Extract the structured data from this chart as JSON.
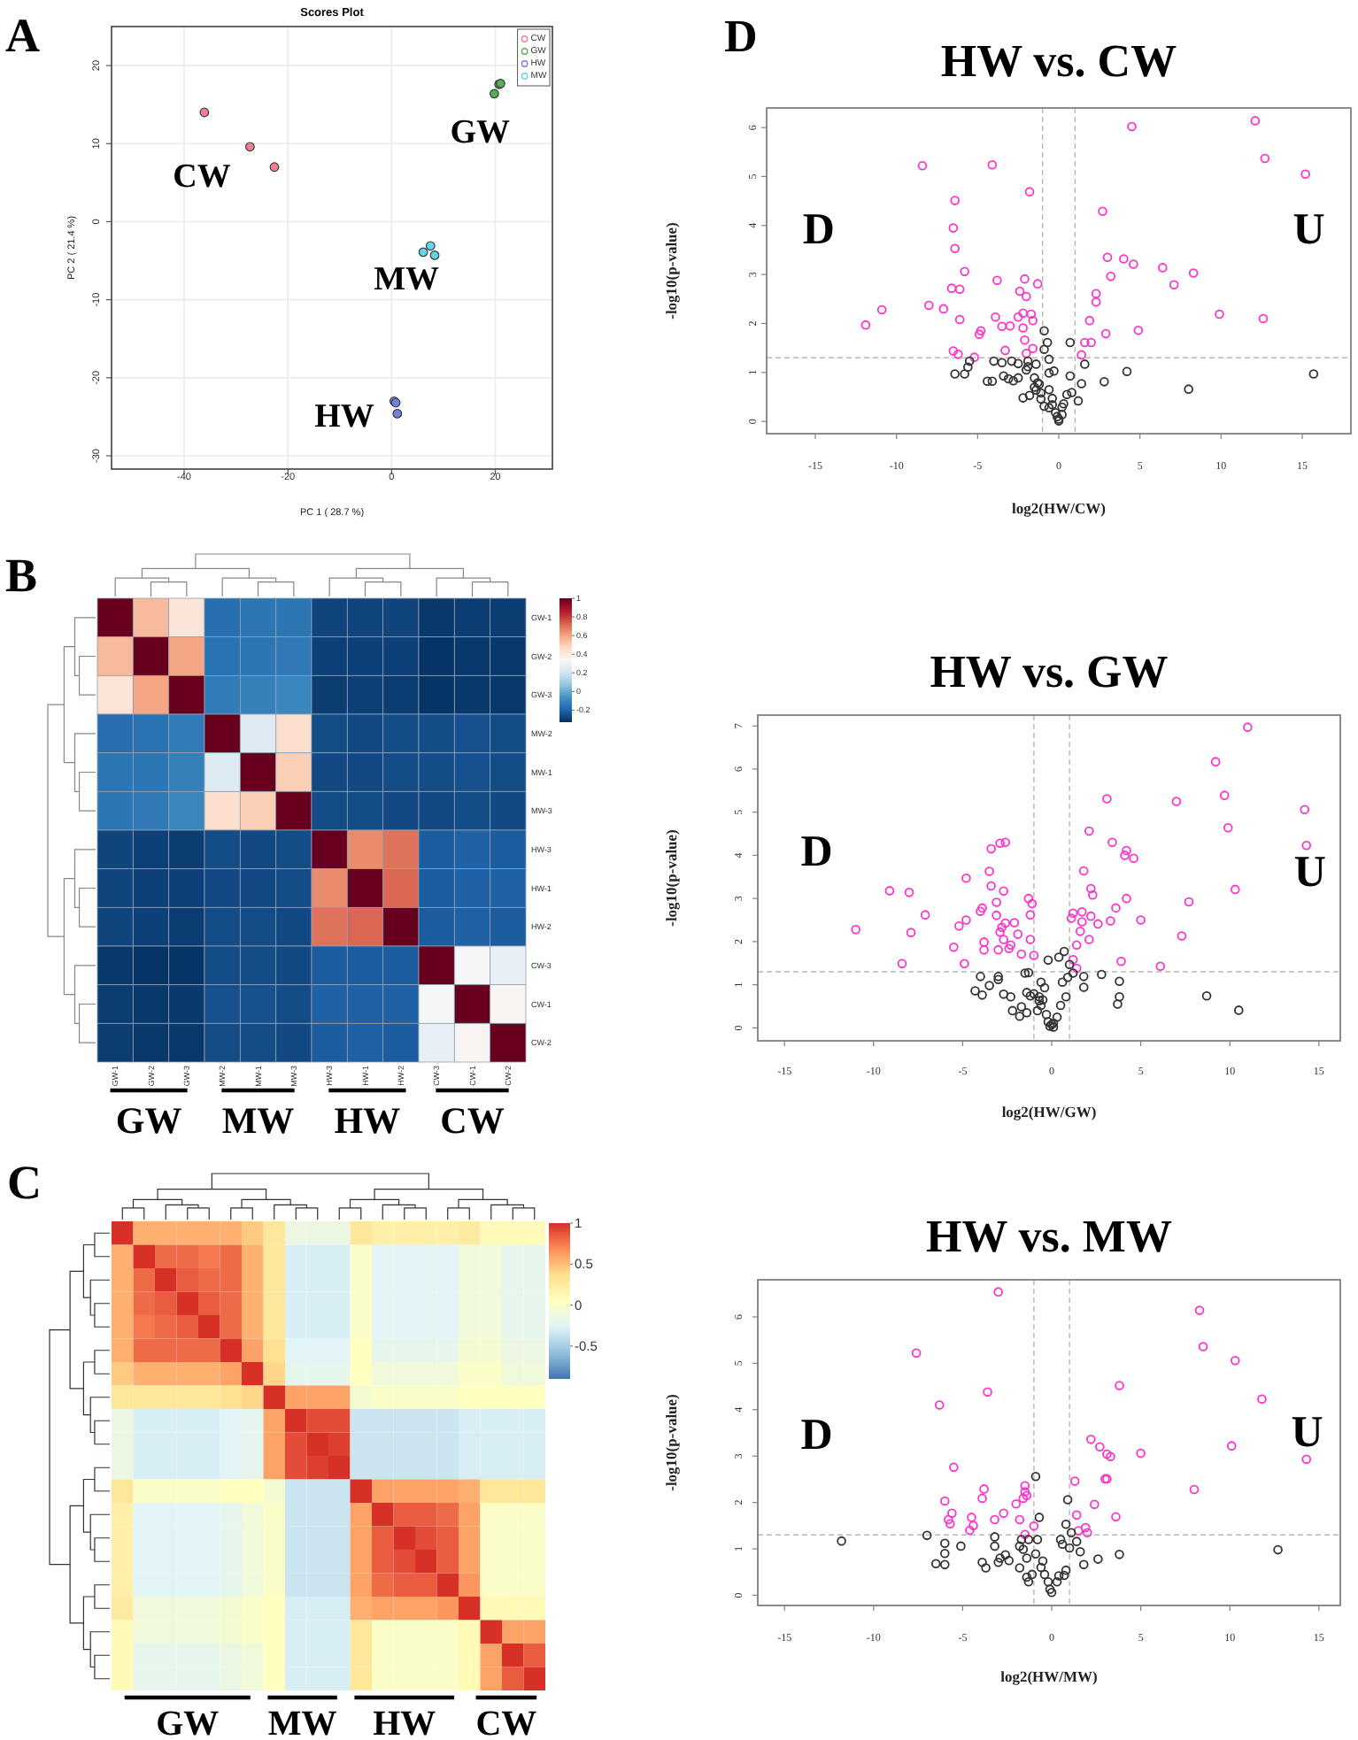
{
  "chart_data": [
    {
      "type": "scatter",
      "title": "Scores Plot",
      "xlabel": "PC 1 ( 28.7 %)",
      "ylabel": "PC 2 ( 21.4 %)",
      "annotations": [
        "A",
        "CW",
        "GW",
        "MW",
        "HW"
      ],
      "xlim": [
        -54,
        31
      ],
      "ylim": [
        -31.7,
        25
      ],
      "xticks": [
        -40,
        -20,
        0,
        20
      ],
      "yticks": [
        -30,
        -20,
        -10,
        0,
        10,
        20
      ],
      "grid": true,
      "legend": "top right",
      "marker": "circle",
      "series": [
        {
          "name": "CW",
          "color": "#f07f93",
          "x": [
            -36.1,
            -27.3,
            -22.6
          ],
          "values": [
            14.0,
            9.6,
            7.0
          ]
        },
        {
          "name": "GW",
          "color": "#55b04f",
          "x": [
            19.8,
            20.7,
            21.0
          ],
          "values": [
            16.4,
            17.6,
            17.7
          ]
        },
        {
          "name": "HW",
          "color": "#7080de",
          "x": [
            0.5,
            0.8,
            1.1
          ],
          "values": [
            -23.0,
            -23.2,
            -24.6
          ]
        },
        {
          "name": "MW",
          "color": "#62d5e8",
          "x": [
            6.1,
            7.5,
            8.3
          ],
          "values": [
            -3.9,
            -3.1,
            -4.3
          ]
        }
      ]
    },
    {
      "type": "heatmap",
      "annotations": [
        "B",
        "GW",
        "MW",
        "HW",
        "CW"
      ],
      "categories": [
        "GW-1",
        "GW-2",
        "GW-3",
        "MW-2",
        "MW-1",
        "MW-3",
        "HW-3",
        "HW-1",
        "HW-2",
        "CW-3",
        "CW-1",
        "CW-2"
      ],
      "y_categories": [
        "GW-1",
        "GW-2",
        "GW-3",
        "MW-2",
        "MW-1",
        "MW-3",
        "HW-3",
        "HW-1",
        "HW-2",
        "CW-3",
        "CW-1",
        "CW-2"
      ],
      "clim": [
        -0.33,
        1
      ],
      "cticks": [
        -0.2,
        0,
        0.2,
        0.4,
        0.6,
        0.8,
        1
      ],
      "colors": [
        "#053061",
        "#2166ac",
        "#4393c3",
        "#92c5de",
        "#d1e5f0",
        "#f7f7f7",
        "#fddbc7",
        "#f4a582",
        "#d6604d",
        "#b2182b",
        "#67001f"
      ],
      "cells": [
        [
          1,
          0.55,
          0.42,
          -0.17,
          -0.15,
          -0.15,
          -0.28,
          -0.28,
          -0.28,
          -0.31,
          -0.3,
          -0.3
        ],
        [
          0.55,
          1,
          0.6,
          -0.16,
          -0.15,
          -0.14,
          -0.29,
          -0.29,
          -0.29,
          -0.32,
          -0.31,
          -0.31
        ],
        [
          0.42,
          0.6,
          1,
          -0.13,
          -0.12,
          -0.1,
          -0.3,
          -0.29,
          -0.3,
          -0.32,
          -0.31,
          -0.31
        ],
        [
          -0.17,
          -0.16,
          -0.13,
          1,
          0.25,
          0.45,
          -0.26,
          -0.27,
          -0.26,
          -0.26,
          -0.25,
          -0.26
        ],
        [
          -0.15,
          -0.15,
          -0.12,
          0.25,
          1,
          0.5,
          -0.27,
          -0.27,
          -0.26,
          -0.26,
          -0.25,
          -0.26
        ],
        [
          -0.15,
          -0.14,
          -0.1,
          0.45,
          0.5,
          1,
          -0.26,
          -0.26,
          -0.27,
          -0.27,
          -0.26,
          -0.27
        ],
        [
          -0.28,
          -0.29,
          -0.3,
          -0.26,
          -0.27,
          -0.26,
          1,
          0.65,
          0.7,
          -0.22,
          -0.21,
          -0.22
        ],
        [
          -0.28,
          -0.29,
          -0.29,
          -0.27,
          -0.27,
          -0.26,
          0.65,
          1,
          0.72,
          -0.22,
          -0.21,
          -0.21
        ],
        [
          -0.28,
          -0.29,
          -0.3,
          -0.26,
          -0.26,
          -0.27,
          0.7,
          0.72,
          1,
          -0.22,
          -0.21,
          -0.22
        ],
        [
          -0.31,
          -0.32,
          -0.32,
          -0.26,
          -0.26,
          -0.27,
          -0.22,
          -0.22,
          -0.22,
          1,
          0.33,
          0.28
        ],
        [
          -0.3,
          -0.31,
          -0.31,
          -0.25,
          -0.25,
          -0.26,
          -0.21,
          -0.21,
          -0.21,
          0.33,
          1,
          0.35
        ],
        [
          -0.3,
          -0.31,
          -0.31,
          -0.26,
          -0.26,
          -0.27,
          -0.22,
          -0.21,
          -0.22,
          0.28,
          0.35,
          1
        ]
      ]
    },
    {
      "type": "heatmap",
      "annotations": [
        "C",
        "GW",
        "MW",
        "HW",
        "CW"
      ],
      "categories": [
        null,
        null,
        null,
        null,
        null,
        null,
        null,
        null,
        null,
        null,
        null,
        null,
        null,
        null,
        null,
        null,
        null,
        null,
        null,
        null
      ],
      "y_categories": [
        null,
        null,
        null,
        null,
        null,
        null,
        null,
        null,
        null,
        null,
        null,
        null,
        null,
        null,
        null,
        null,
        null,
        null,
        null,
        null
      ],
      "clim": [
        -0.9,
        1
      ],
      "cticks": [
        -0.5,
        0,
        0.5,
        1
      ],
      "colors": [
        "#4575b4",
        "#91bfdb",
        "#e0f3f8",
        "#ffffbf",
        "#fee090",
        "#fc8d59",
        "#d73027"
      ],
      "cells": [
        [
          1,
          0.55,
          0.55,
          0.55,
          0.55,
          0.55,
          0.45,
          0.3,
          -0.15,
          -0.15,
          -0.15,
          0.3,
          0.2,
          0.2,
          0.2,
          0.2,
          0.25,
          0.1,
          0.1,
          0.1
        ],
        [
          0.55,
          1,
          0.8,
          0.8,
          0.75,
          0.8,
          0.55,
          0.3,
          -0.3,
          -0.3,
          -0.3,
          0,
          -0.25,
          -0.25,
          -0.25,
          -0.25,
          -0.1,
          -0.1,
          -0.2,
          -0.2
        ],
        [
          0.55,
          0.8,
          1,
          0.85,
          0.8,
          0.8,
          0.55,
          0.3,
          -0.3,
          -0.3,
          -0.3,
          0,
          -0.25,
          -0.25,
          -0.25,
          -0.25,
          -0.1,
          -0.1,
          -0.2,
          -0.2
        ],
        [
          0.55,
          0.8,
          0.85,
          1,
          0.85,
          0.8,
          0.55,
          0.3,
          -0.3,
          -0.3,
          -0.3,
          0,
          -0.25,
          -0.25,
          -0.25,
          -0.25,
          -0.1,
          -0.1,
          -0.2,
          -0.2
        ],
        [
          0.55,
          0.75,
          0.8,
          0.85,
          1,
          0.8,
          0.55,
          0.3,
          -0.3,
          -0.3,
          -0.3,
          0,
          -0.25,
          -0.25,
          -0.25,
          -0.25,
          -0.1,
          -0.1,
          -0.2,
          -0.2
        ],
        [
          0.55,
          0.8,
          0.8,
          0.8,
          0.8,
          1,
          0.6,
          0.35,
          -0.25,
          -0.25,
          -0.25,
          0.05,
          -0.2,
          -0.2,
          -0.2,
          -0.2,
          -0.05,
          -0.05,
          -0.15,
          -0.15
        ],
        [
          0.45,
          0.55,
          0.55,
          0.55,
          0.55,
          0.6,
          1,
          0.4,
          -0.2,
          -0.2,
          -0.2,
          0.05,
          -0.1,
          -0.1,
          -0.1,
          -0.1,
          0,
          0,
          -0.1,
          -0.1
        ],
        [
          0.3,
          0.3,
          0.3,
          0.3,
          0.3,
          0.35,
          0.4,
          1,
          0.6,
          0.6,
          0.6,
          -0.05,
          0,
          0,
          0,
          0,
          0.05,
          0.05,
          0.05,
          0.05
        ],
        [
          -0.15,
          -0.3,
          -0.3,
          -0.3,
          -0.3,
          -0.25,
          -0.2,
          0.6,
          1,
          0.9,
          0.9,
          -0.35,
          -0.35,
          -0.35,
          -0.35,
          -0.35,
          -0.3,
          -0.3,
          -0.3,
          -0.3
        ],
        [
          -0.15,
          -0.3,
          -0.3,
          -0.3,
          -0.3,
          -0.25,
          -0.2,
          0.6,
          0.9,
          1,
          0.95,
          -0.35,
          -0.35,
          -0.35,
          -0.35,
          -0.35,
          -0.3,
          -0.3,
          -0.3,
          -0.3
        ],
        [
          -0.15,
          -0.3,
          -0.3,
          -0.3,
          -0.3,
          -0.25,
          -0.2,
          0.6,
          0.9,
          0.95,
          1,
          -0.35,
          -0.35,
          -0.35,
          -0.35,
          -0.35,
          -0.3,
          -0.3,
          -0.3,
          -0.3
        ],
        [
          0.3,
          0,
          0,
          0,
          0,
          0.05,
          0.05,
          -0.05,
          -0.35,
          -0.35,
          -0.35,
          1,
          0.6,
          0.6,
          0.6,
          0.6,
          0.55,
          0.3,
          0.3,
          0.3
        ],
        [
          0.2,
          -0.25,
          -0.25,
          -0.25,
          -0.25,
          -0.2,
          -0.1,
          0,
          -0.35,
          -0.35,
          -0.35,
          0.6,
          1,
          0.85,
          0.85,
          0.8,
          0.6,
          0,
          0,
          0
        ],
        [
          0.2,
          -0.25,
          -0.25,
          -0.25,
          -0.25,
          -0.2,
          -0.1,
          0,
          -0.35,
          -0.35,
          -0.35,
          0.6,
          0.85,
          1,
          0.9,
          0.85,
          0.6,
          0,
          0,
          0
        ],
        [
          0.2,
          -0.25,
          -0.25,
          -0.25,
          -0.25,
          -0.2,
          -0.1,
          0,
          -0.35,
          -0.35,
          -0.35,
          0.6,
          0.85,
          0.9,
          1,
          0.85,
          0.6,
          0,
          0,
          0
        ],
        [
          0.2,
          -0.25,
          -0.25,
          -0.25,
          -0.25,
          -0.2,
          -0.1,
          0,
          -0.35,
          -0.35,
          -0.35,
          0.6,
          0.8,
          0.85,
          0.85,
          1,
          0.65,
          0,
          0,
          0
        ],
        [
          0.25,
          -0.1,
          -0.1,
          -0.1,
          -0.1,
          -0.05,
          0,
          0.05,
          -0.3,
          -0.3,
          -0.3,
          0.55,
          0.6,
          0.6,
          0.6,
          0.65,
          1,
          0.1,
          0.1,
          0.1
        ],
        [
          0.1,
          -0.1,
          -0.1,
          -0.1,
          -0.1,
          -0.05,
          0,
          0.05,
          -0.3,
          -0.3,
          -0.3,
          0.3,
          0,
          0,
          0,
          0,
          0.1,
          1,
          0.6,
          0.6
        ],
        [
          0.1,
          -0.2,
          -0.2,
          -0.2,
          -0.2,
          -0.15,
          -0.1,
          0.05,
          -0.3,
          -0.3,
          -0.3,
          0.3,
          0,
          0,
          0,
          0,
          0.1,
          0.6,
          1,
          0.85
        ],
        [
          0.1,
          -0.2,
          -0.2,
          -0.2,
          -0.2,
          -0.15,
          -0.1,
          0.05,
          -0.3,
          -0.3,
          -0.3,
          0.3,
          0,
          0,
          0,
          0,
          0.1,
          0.6,
          0.85,
          1
        ]
      ]
    },
    {
      "type": "scatter",
      "title": "HW vs. CW",
      "xlabel": "log2(HW/CW)",
      "ylabel": "-log10(p-value)",
      "annotations": [
        "D",
        "D",
        "U"
      ],
      "xlim": [
        -18,
        18
      ],
      "ylim": [
        -0.25,
        6.4
      ],
      "xticks": [
        -15,
        -10,
        -5,
        0,
        5,
        10,
        15
      ],
      "yticks": [
        0,
        1,
        2,
        3,
        4,
        5,
        6
      ],
      "marker": "circle",
      "ref_lines": [
        {
          "axis": "x",
          "value": -1,
          "color": "#b8b8b8",
          "line_style": "dashed"
        },
        {
          "axis": "x",
          "value": 1,
          "color": "#b8b8b8",
          "line_style": "dashed"
        },
        {
          "axis": "y",
          "value": 1.3,
          "color": "#b8b8b8",
          "line_style": "dashed"
        }
      ],
      "series": [
        {
          "color": "#ff33cc",
          "x": [
            12.1,
            12.7,
            15.2,
            4.5,
            -8.4,
            -4.1,
            -1.8,
            2.7,
            -6.4,
            -6.5,
            -6.4,
            3.0,
            4.0,
            4.6,
            6.4,
            8.3,
            7.1,
            3.2,
            -5.8,
            -6.6,
            -6.1,
            -3.8,
            -2.1,
            -1.3,
            -2.4,
            -2.0,
            2.3,
            2.3,
            -8.0,
            -7.1,
            -10.9,
            -11.9,
            -6.1,
            -3.9,
            -2.5,
            -2.2,
            -1.7,
            -1.6,
            -3.5,
            -3.0,
            -2.2,
            -4.8,
            -4.9,
            1.9,
            2.9,
            4.9,
            2.0,
            1.6,
            -2.1,
            -1.6,
            -3.3,
            -6.5,
            -6.2,
            -2.0,
            1.4,
            -5.2,
            9.9,
            12.6
          ],
          "values": [
            6.14,
            5.37,
            5.05,
            6.02,
            5.22,
            5.24,
            4.69,
            4.29,
            4.51,
            3.95,
            3.53,
            3.35,
            3.32,
            3.21,
            3.14,
            3.03,
            2.79,
            2.96,
            3.06,
            2.72,
            2.7,
            2.88,
            2.91,
            2.81,
            2.66,
            2.55,
            2.61,
            2.44,
            2.37,
            2.3,
            2.28,
            1.97,
            2.08,
            2.13,
            2.13,
            2.21,
            2.19,
            2.06,
            1.94,
            1.95,
            1.91,
            1.85,
            1.78,
            2.06,
            1.79,
            1.86,
            1.61,
            1.61,
            1.66,
            1.49,
            1.45,
            1.44,
            1.37,
            1.39,
            1.36,
            1.31,
            2.19,
            2.1
          ]
        },
        {
          "color": "#333333",
          "x": [
            15.7,
            8.0,
            4.2,
            2.8,
            0.7,
            0.7,
            1.6,
            1.4,
            1.2,
            0.5,
            0.8,
            0.2,
            0.0,
            0.2,
            -0.2,
            0.3,
            -0.4,
            -0.6,
            -0.9,
            -0.7,
            -0.9,
            -0.6,
            -1.4,
            -1.9,
            -1.9,
            -2.0,
            -1.5,
            -1.3,
            -1.2,
            -1.1,
            -0.9,
            -1.1,
            -1.4,
            -1.5,
            -1.8,
            -2.2,
            -2.5,
            -2.5,
            -2.9,
            -3.5,
            -4.0,
            -3.4,
            -3.1,
            -2.8,
            -4.1,
            -4.4,
            -5.5,
            -5.6,
            -5.8,
            -6.4,
            -0.3,
            -0.6,
            -0.4,
            -0.6,
            0.0,
            -0.1
          ],
          "values": [
            0.97,
            0.66,
            1.02,
            0.81,
            1.61,
            0.93,
            1.17,
            0.77,
            0.42,
            0.55,
            0.59,
            0.29,
            0.01,
            0.14,
            0.18,
            0.36,
            0.34,
            0.65,
            1.85,
            1.61,
            1.47,
            1.27,
            1.17,
            1.23,
            1.12,
            1.05,
            0.89,
            0.79,
            0.76,
            0.58,
            0.31,
            0.46,
            0.64,
            0.7,
            0.53,
            0.48,
            0.89,
            1.18,
            1.23,
            1.2,
            1.23,
            0.93,
            0.87,
            0.83,
            0.82,
            0.82,
            1.23,
            1.11,
            0.97,
            0.97,
            1.03,
            0.99,
            0.47,
            0.28,
            0.05,
            0.1
          ]
        }
      ]
    },
    {
      "type": "scatter",
      "title": "HW vs. GW",
      "xlabel": "log2(HW/GW)",
      "ylabel": "-log10(p-value)",
      "annotations": [
        "D",
        "U"
      ],
      "xlim": [
        -16.5,
        16.2
      ],
      "ylim": [
        -0.3,
        7.25
      ],
      "xticks": [
        -15,
        -10,
        -5,
        0,
        5,
        10,
        15
      ],
      "yticks": [
        0,
        1,
        2,
        3,
        4,
        5,
        6,
        7
      ],
      "marker": "circle",
      "ref_lines": [
        {
          "axis": "x",
          "value": -1,
          "color": "#b8b8b8",
          "line_style": "dashed"
        },
        {
          "axis": "x",
          "value": 1,
          "color": "#b8b8b8",
          "line_style": "dashed"
        },
        {
          "axis": "y",
          "value": 1.3,
          "color": "#b8b8b8",
          "line_style": "dashed"
        }
      ],
      "series": [
        {
          "color": "#ff33cc",
          "x": [
            11.0,
            9.2,
            9.7,
            9.9,
            14.2,
            14.3,
            10.3,
            7.0,
            3.1,
            2.1,
            3.4,
            4.2,
            4.1,
            4.6,
            1.8,
            2.2,
            2.3,
            4.2,
            3.6,
            7.7,
            5.0,
            3.3,
            2.6,
            2.2,
            1.7,
            1.2,
            1.1,
            1.7,
            1.6,
            2.1,
            1.4,
            1.2,
            1.4,
            3.9,
            7.3,
            6.1,
            -1.3,
            -1.1,
            -1.2,
            -1.2,
            -1.0,
            -1.7,
            -1.9,
            -2.1,
            -2.6,
            -2.9,
            -3.4,
            -3.5,
            -3.4,
            -2.7,
            -3.1,
            -2.6,
            -2.8,
            -3.1,
            -2.9,
            -2.7,
            -2.3,
            -2.4,
            -3.0,
            -3.9,
            -4.0,
            -3.8,
            -3.8,
            -4.8,
            -4.8,
            -5.2,
            -4.9,
            -5.5,
            -7.1,
            -8.0,
            -9.1,
            -7.9,
            -8.4,
            -11.0
          ],
          "values": [
            6.97,
            6.17,
            5.39,
            4.64,
            5.06,
            4.23,
            3.21,
            5.25,
            5.31,
            4.56,
            4.3,
            4.11,
            4.0,
            3.93,
            3.64,
            3.23,
            3.08,
            3.0,
            2.78,
            2.92,
            2.5,
            2.48,
            2.41,
            2.59,
            2.69,
            2.66,
            2.54,
            2.46,
            2.24,
            2.05,
            1.92,
            1.58,
            1.38,
            1.54,
            2.13,
            1.43,
            3.0,
            2.88,
            2.62,
            2.05,
            1.68,
            1.71,
            2.17,
            2.44,
            4.3,
            4.28,
            4.15,
            3.63,
            3.29,
            3.17,
            2.91,
            2.43,
            2.33,
            2.61,
            2.22,
            2.05,
            1.92,
            1.84,
            1.81,
            2.78,
            2.7,
            1.99,
            1.81,
            3.47,
            2.5,
            2.36,
            1.49,
            1.87,
            2.62,
            3.14,
            3.18,
            2.21,
            1.49,
            2.28
          ]
        },
        {
          "color": "#333333",
          "x": [
            10.5,
            8.7,
            3.8,
            3.8,
            3.7,
            2.8,
            1.8,
            1.8,
            1.2,
            1.0,
            0.9,
            0.7,
            0.4,
            -0.2,
            0.6,
            0.8,
            0.5,
            0.3,
            0.1,
            -0.1,
            -0.2,
            -0.3,
            -0.4,
            -0.6,
            -0.7,
            -0.6,
            -0.8,
            -1.0,
            -1.2,
            -1.4,
            -1.3,
            -1.5,
            -1.7,
            -1.4,
            -1.8,
            -2.2,
            -2.3,
            -2.7,
            -3.0,
            -3.0,
            -3.5,
            -4.0,
            -3.9,
            -4.3,
            -0.5,
            -0.7,
            0.0,
            0.1
          ],
          "values": [
            0.41,
            0.74,
            1.08,
            0.72,
            0.55,
            1.24,
            1.19,
            0.94,
            1.27,
            1.47,
            1.17,
            1.77,
            1.64,
            1.57,
            1.06,
            0.72,
            0.52,
            0.25,
            0.11,
            0.04,
            0.14,
            0.31,
            0.93,
            1.06,
            0.63,
            0.52,
            0.4,
            0.79,
            0.74,
            0.82,
            1.28,
            1.27,
            0.49,
            0.35,
            0.27,
            0.4,
            0.72,
            0.78,
            1.19,
            1.12,
            0.98,
            1.19,
            0.76,
            0.86,
            0.65,
            0.72,
            0.08,
            0.02
          ]
        }
      ]
    },
    {
      "type": "scatter",
      "title": "HW vs. MW",
      "xlabel": "log2(HW/MW)",
      "ylabel": "-log10(p-value)",
      "annotations": [
        "D",
        "U"
      ],
      "xlim": [
        -16.5,
        16.2
      ],
      "ylim": [
        -0.22,
        6.8
      ],
      "xticks": [
        -15,
        -10,
        -5,
        0,
        5,
        10,
        15
      ],
      "yticks": [
        0,
        1,
        2,
        3,
        4,
        5,
        6
      ],
      "marker": "circle",
      "ref_lines": [
        {
          "axis": "x",
          "value": -1,
          "color": "#b8b8b8",
          "line_style": "dashed"
        },
        {
          "axis": "x",
          "value": 1,
          "color": "#b8b8b8",
          "line_style": "dashed"
        },
        {
          "axis": "y",
          "value": 1.3,
          "color": "#b8b8b8",
          "line_style": "dashed"
        }
      ],
      "series": [
        {
          "color": "#ff33cc",
          "x": [
            -3.0,
            -7.6,
            -3.6,
            -6.3,
            -5.5,
            8.3,
            8.5,
            10.3,
            11.8,
            3.8,
            10.1,
            14.3,
            8.0,
            5.0,
            2.2,
            2.7,
            3.1,
            3.3,
            3.0,
            3.1,
            1.3,
            2.4,
            1.4,
            3.6,
            1.9,
            2.0,
            1.5,
            -1.5,
            -1.5,
            -1.4,
            -1.6,
            -2.0,
            -1.8,
            -1.0,
            -1.5,
            -2.7,
            -3.2,
            -3.8,
            -3.9,
            -6.0,
            -5.6,
            -5.8,
            -5.7,
            -4.5,
            -4.4,
            -4.6
          ],
          "values": [
            6.54,
            5.22,
            4.38,
            4.1,
            2.76,
            6.14,
            5.36,
            5.06,
            4.23,
            4.52,
            3.22,
            2.93,
            2.28,
            3.06,
            3.36,
            3.2,
            3.04,
            2.99,
            2.51,
            2.51,
            2.46,
            1.96,
            1.73,
            1.69,
            1.46,
            1.35,
            1.39,
            2.36,
            2.23,
            2.15,
            2.09,
            1.97,
            1.63,
            1.49,
            1.31,
            1.77,
            1.63,
            2.29,
            2.09,
            2.03,
            1.77,
            1.63,
            1.54,
            1.68,
            1.5,
            1.4
          ]
        },
        {
          "color": "#333333",
          "x": [
            -11.8,
            12.7,
            3.8,
            2.6,
            1.8,
            1.6,
            1.4,
            1.1,
            1.0,
            0.8,
            0.9,
            -0.9,
            -0.7,
            0.8,
            0.5,
            0.6,
            0.7,
            0.4,
            0.3,
            0.0,
            -0.1,
            -0.2,
            -0.4,
            -0.5,
            -0.6,
            -0.8,
            -0.9,
            -1.1,
            -1.3,
            -1.4,
            -1.7,
            -1.8,
            -1.8,
            -1.6,
            -1.3,
            -1.4,
            -2.6,
            -2.9,
            -3.0,
            -3.2,
            -3.2,
            -3.9,
            -3.7,
            -5.1,
            -6.0,
            -6.0,
            -6.0,
            -6.5,
            -7.0,
            -2.4
          ],
          "values": [
            1.17,
            0.98,
            0.88,
            0.78,
            0.66,
            0.94,
            1.16,
            1.35,
            1.02,
            0.54,
            2.06,
            2.56,
            1.68,
            1.53,
            1.2,
            1.1,
            0.43,
            0.42,
            0.29,
            0.06,
            0.13,
            0.29,
            0.45,
            0.74,
            0.6,
            1.2,
            0.89,
            0.45,
            0.29,
            0.8,
            1.2,
            1.06,
            0.59,
            0.99,
            1.2,
            0.39,
            0.87,
            0.8,
            0.71,
            1.26,
            1.06,
            0.71,
            0.59,
            1.06,
            1.12,
            0.9,
            0.66,
            0.68,
            1.29,
            0.75
          ]
        }
      ]
    }
  ]
}
